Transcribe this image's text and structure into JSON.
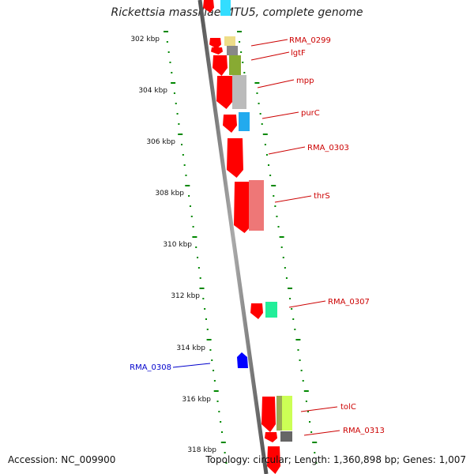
{
  "title": "Rickettsia massiliae MTU5, complete genome",
  "footer": {
    "accession": "Accession: NC_009900",
    "summary": "Topology: circular; Length: 1,360,898 bp; Genes: 1,007"
  },
  "scale_labels": [
    {
      "text": "302 kbp"
    },
    {
      "text": "304 kbp"
    },
    {
      "text": "306 kbp"
    },
    {
      "text": "308 kbp"
    },
    {
      "text": "310 kbp"
    },
    {
      "text": "312 kbp"
    },
    {
      "text": "314 kbp"
    },
    {
      "text": "316 kbp"
    },
    {
      "text": "318 kbp"
    }
  ],
  "gene_labels": [
    {
      "text": "RMA_0299",
      "color": "#cc0000"
    },
    {
      "text": "lgtF",
      "color": "#cc0000"
    },
    {
      "text": "mpp",
      "color": "#cc0000"
    },
    {
      "text": "purC",
      "color": "#cc0000"
    },
    {
      "text": "RMA_0303",
      "color": "#cc0000"
    },
    {
      "text": "thrS",
      "color": "#cc0000"
    },
    {
      "text": "RMA_0307",
      "color": "#cc0000"
    },
    {
      "text": "RMA_0308",
      "color": "#0000cc"
    },
    {
      "text": "tolC",
      "color": "#cc0000"
    },
    {
      "text": "RMA_0313",
      "color": "#cc0000"
    }
  ],
  "colors": {
    "cds_forward": "#ff0000",
    "cds_reverse": "#0000ff",
    "backbone": "#888888",
    "tick": "#008800"
  }
}
